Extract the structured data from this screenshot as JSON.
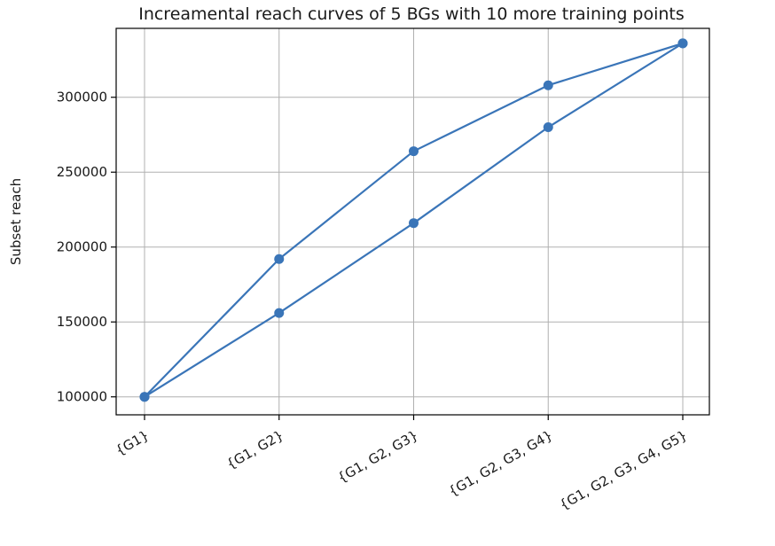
{
  "chart_data": {
    "type": "line",
    "title": "Increamental reach curves of 5 BGs with 10 more training points",
    "xlabel": "",
    "ylabel": "Subset reach",
    "categories": [
      "{G1}",
      "{G1, G2}",
      "{G1, G2, G3}",
      "{G1, G2, G3, G4}",
      "{G1, G2, G3, G4, G5}"
    ],
    "yticks": [
      100000,
      150000,
      200000,
      250000,
      300000
    ],
    "ylim": [
      88000,
      346000
    ],
    "grid": true,
    "color": "#3a75b8",
    "series": [
      {
        "values": [
          100000,
          192000,
          264000,
          308000,
          336000
        ]
      },
      {
        "values": [
          100000,
          156000,
          216000,
          280000,
          336000
        ]
      }
    ]
  }
}
